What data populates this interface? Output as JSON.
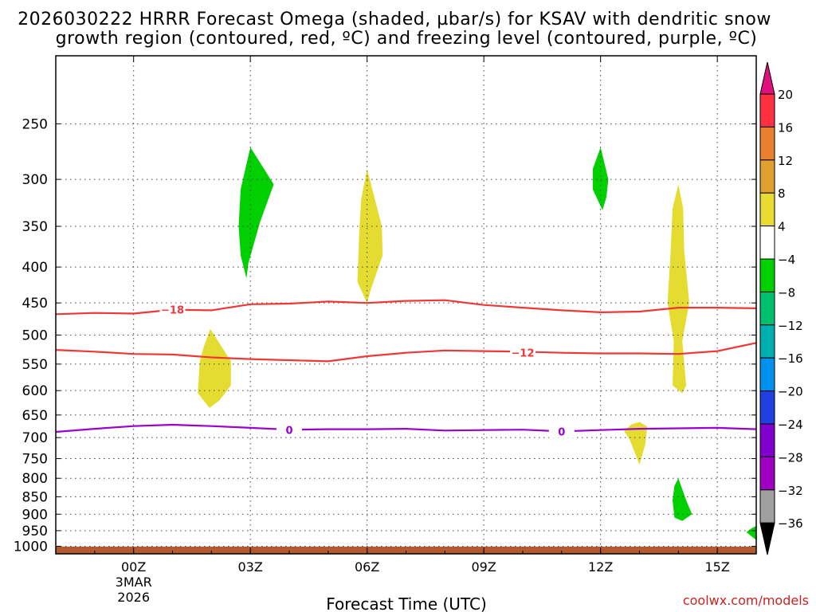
{
  "chart_data": {
    "type": "heatmap",
    "title_line1": "2026030222 HRRR Forecast Omega (shaded, µbar/s) for KSAV with dendritic snow",
    "title_line2": "growth region (contoured, red, ºC) and freezing level (contoured, purple, ºC)",
    "xlabel": "Forecast Time (UTC)",
    "credit": "coolwx.com/models",
    "x_range_hours": [
      -2,
      16
    ],
    "x_ticks": [
      {
        "hour": 0,
        "label": "00Z",
        "sub1": "3MAR",
        "sub2": "2026"
      },
      {
        "hour": 3,
        "label": "03Z",
        "sub1": "",
        "sub2": ""
      },
      {
        "hour": 6,
        "label": "06Z",
        "sub1": "",
        "sub2": ""
      },
      {
        "hour": 9,
        "label": "09Z",
        "sub1": "",
        "sub2": ""
      },
      {
        "hour": 12,
        "label": "12Z",
        "sub1": "",
        "sub2": ""
      },
      {
        "hour": 15,
        "label": "15Z",
        "sub1": "",
        "sub2": ""
      }
    ],
    "y_range_hpa": [
      200,
      1025
    ],
    "y_ticks": [
      250,
      300,
      350,
      400,
      450,
      500,
      550,
      600,
      650,
      700,
      750,
      800,
      850,
      900,
      950,
      1000
    ],
    "contours": [
      {
        "name": "dgz-minus18",
        "label": "−18",
        "label_at": [
          1,
          460
        ],
        "color": "#ee3838",
        "points": [
          [
            -2,
            467
          ],
          [
            -1,
            465
          ],
          [
            0,
            466
          ],
          [
            1,
            460
          ],
          [
            2,
            461
          ],
          [
            3,
            452
          ],
          [
            4,
            451
          ],
          [
            5,
            448
          ],
          [
            6,
            450
          ],
          [
            7,
            447
          ],
          [
            8,
            446
          ],
          [
            9,
            453
          ],
          [
            10,
            457
          ],
          [
            11,
            461
          ],
          [
            12,
            464
          ],
          [
            13,
            463
          ],
          [
            14,
            457
          ],
          [
            15,
            457
          ],
          [
            16,
            458
          ]
        ]
      },
      {
        "name": "dgz-minus12",
        "label": "−12",
        "label_at": [
          10,
          530
        ],
        "color": "#ee3838",
        "points": [
          [
            -2,
            525
          ],
          [
            -1,
            528
          ],
          [
            0,
            532
          ],
          [
            1,
            533
          ],
          [
            2,
            538
          ],
          [
            3,
            541
          ],
          [
            4,
            543
          ],
          [
            5,
            545
          ],
          [
            6,
            536
          ],
          [
            7,
            530
          ],
          [
            8,
            526
          ],
          [
            9,
            527
          ],
          [
            10,
            528
          ],
          [
            11,
            530
          ],
          [
            12,
            531
          ],
          [
            13,
            531
          ],
          [
            14,
            532
          ],
          [
            15,
            527
          ],
          [
            16,
            513
          ]
        ]
      },
      {
        "name": "freezing-level",
        "label": "0",
        "label_at": [
          4,
          683
        ],
        "label2_at": [
          11,
          686
        ],
        "color": "#9b00cc",
        "points": [
          [
            -2,
            687
          ],
          [
            -1,
            680
          ],
          [
            0,
            674
          ],
          [
            1,
            671
          ],
          [
            2,
            674
          ],
          [
            3,
            678
          ],
          [
            4,
            682
          ],
          [
            5,
            681
          ],
          [
            6,
            681
          ],
          [
            7,
            680
          ],
          [
            8,
            684
          ],
          [
            9,
            683
          ],
          [
            10,
            682
          ],
          [
            11,
            686
          ],
          [
            12,
            683
          ],
          [
            13,
            680
          ],
          [
            14,
            679
          ],
          [
            15,
            678
          ],
          [
            16,
            681
          ]
        ]
      }
    ],
    "shaded_regions": [
      {
        "name": "green-03z-upper",
        "value_range": "-8 to -4",
        "color": "#00d000",
        "outline": [
          [
            3,
            270
          ],
          [
            3.6,
            305
          ],
          [
            3.25,
            345
          ],
          [
            2.95,
            395
          ],
          [
            2.9,
            415
          ],
          [
            2.75,
            385
          ],
          [
            2.7,
            350
          ],
          [
            2.75,
            310
          ]
        ]
      },
      {
        "name": "yellow-06z-upper",
        "value_range": "4 to 8",
        "color": "#e5dc32",
        "outline": [
          [
            6,
            290
          ],
          [
            6.38,
            350
          ],
          [
            6.4,
            385
          ],
          [
            6.1,
            430
          ],
          [
            6,
            450
          ],
          [
            5.75,
            420
          ],
          [
            5.8,
            355
          ],
          [
            5.85,
            320
          ]
        ]
      },
      {
        "name": "yellow-02z-mid",
        "value_range": "4 to 8",
        "color": "#e5dc32",
        "outline": [
          [
            1.97,
            490
          ],
          [
            2.5,
            545
          ],
          [
            2.5,
            590
          ],
          [
            2.2,
            620
          ],
          [
            1.95,
            635
          ],
          [
            1.65,
            605
          ],
          [
            1.7,
            545
          ],
          [
            1.8,
            520
          ]
        ]
      },
      {
        "name": "green-12z-upper",
        "value_range": "-8 to -4",
        "color": "#00d000",
        "outline": [
          [
            12,
            270
          ],
          [
            12.2,
            300
          ],
          [
            12.15,
            318
          ],
          [
            12.05,
            332
          ],
          [
            11.8,
            310
          ],
          [
            11.8,
            290
          ]
        ]
      },
      {
        "name": "yellow-14z-column",
        "value_range": "4 to 8",
        "color": "#e5dc32",
        "outline": [
          [
            14,
            305
          ],
          [
            14.12,
            330
          ],
          [
            14.15,
            380
          ],
          [
            14.28,
            450
          ],
          [
            14.1,
            510
          ],
          [
            14.2,
            590
          ],
          [
            14.1,
            605
          ],
          [
            13.85,
            590
          ],
          [
            13.88,
            510
          ],
          [
            13.72,
            450
          ],
          [
            13.8,
            380
          ],
          [
            13.85,
            330
          ]
        ]
      },
      {
        "name": "yellow-13z-low",
        "value_range": "4 to 8",
        "color": "#e5dc32",
        "outline": [
          [
            13,
            665
          ],
          [
            13.2,
            675
          ],
          [
            13.15,
            715
          ],
          [
            13,
            765
          ],
          [
            12.75,
            705
          ],
          [
            12.6,
            685
          ],
          [
            12.8,
            670
          ]
        ]
      },
      {
        "name": "green-14z-low",
        "value_range": "-8 to -4",
        "color": "#00d000",
        "outline": [
          [
            14,
            800
          ],
          [
            14.2,
            860
          ],
          [
            14.35,
            900
          ],
          [
            14.1,
            920
          ],
          [
            13.9,
            910
          ],
          [
            13.85,
            860
          ],
          [
            13.9,
            820
          ]
        ]
      },
      {
        "name": "green-16z-edge",
        "value_range": "-8 to -4",
        "color": "#00d000",
        "outline": [
          [
            16,
            935
          ],
          [
            16,
            980
          ],
          [
            15.85,
            965
          ],
          [
            15.75,
            955
          ],
          [
            15.85,
            945
          ]
        ]
      }
    ],
    "ground_color": "#b35a2e",
    "colorbar": {
      "labels": [
        "20",
        "16",
        "12",
        "8",
        "4",
        "−4",
        "−8",
        "−12",
        "−16",
        "−20",
        "−24",
        "−28",
        "−32",
        "−36"
      ],
      "colors": [
        "#ff3040",
        "#e88030",
        "#e0a030",
        "#e8dc32",
        "#ffffff",
        "#00d000",
        "#00c070",
        "#00b0b0",
        "#0090f0",
        "#2040e0",
        "#8000d0",
        "#a000c0",
        "#a0a0a0"
      ],
      "top_triangle_color": "#e0107a",
      "bottom_triangle_color": "#000000"
    }
  }
}
